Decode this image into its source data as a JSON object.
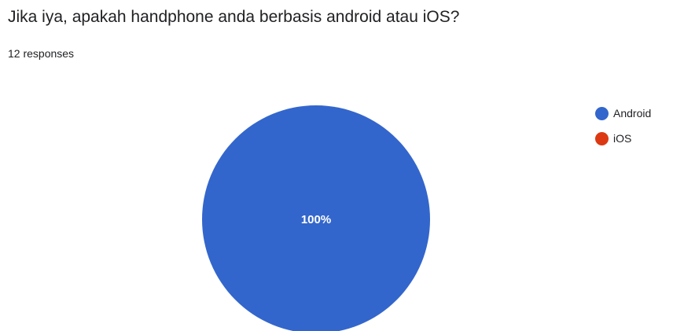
{
  "question": {
    "title": "Jika iya, apakah handphone anda berbasis android atau iOS?",
    "responses_text": "12 responses"
  },
  "chart_data": {
    "type": "pie",
    "title": "Jika iya, apakah handphone anda berbasis android atau iOS?",
    "categories": [
      "Android",
      "iOS"
    ],
    "values": [
      100,
      0
    ],
    "slice_labels": [
      "100%",
      ""
    ],
    "colors": [
      "#3366cc",
      "#dc3912"
    ],
    "legend_position": "right"
  }
}
